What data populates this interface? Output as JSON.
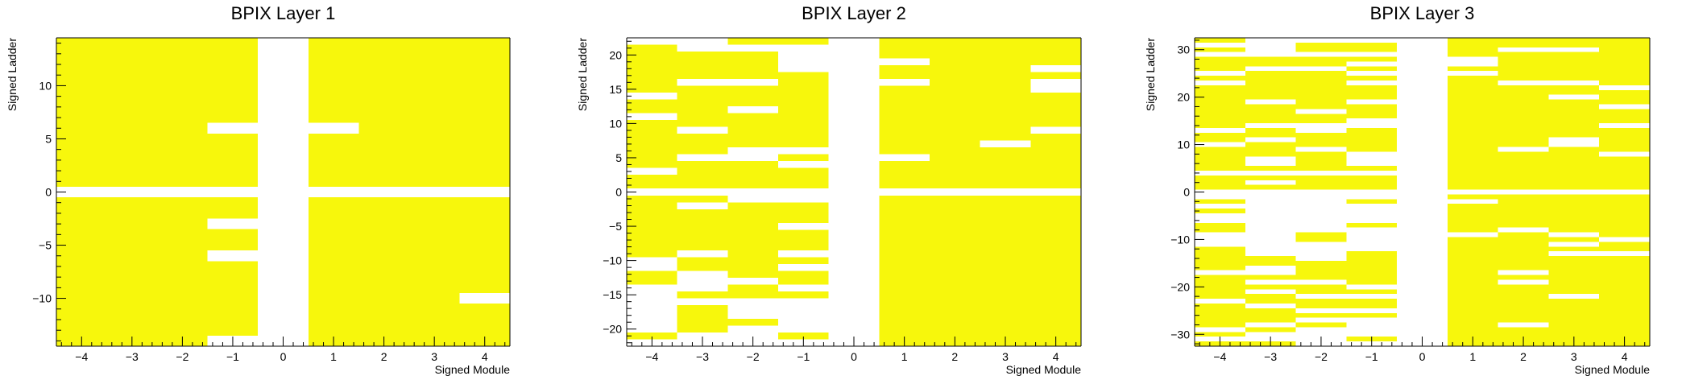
{
  "chart_data": [
    {
      "type": "heatmap",
      "title": "BPIX Layer 1",
      "xlabel": "Signed Module",
      "ylabel": "Signed Ladder",
      "xlim": [
        -4.5,
        4.5
      ],
      "ylim": [
        -14.5,
        14.5
      ],
      "xticks": [
        -4,
        -3,
        -2,
        -1,
        0,
        1,
        2,
        3,
        4
      ],
      "yticks": [
        -10,
        -5,
        0,
        5,
        10
      ],
      "fill_color": "#f7f70c",
      "empty_color": "#ffffff",
      "empty_cells_note": "listed cells (x=module, y=ladder) are empty; all other cells in range are filled",
      "empty_cells": [
        {
          "x": 0,
          "y_range": [
            -14,
            14
          ]
        },
        {
          "x": -1,
          "y": -14
        },
        {
          "x": -1,
          "y": 6
        },
        {
          "x": -1,
          "y": -3
        },
        {
          "x": -1,
          "y": -6
        },
        {
          "x": 1,
          "y": 6
        },
        {
          "x": 4,
          "y": -10
        },
        {
          "x_range": [
            -4,
            4
          ],
          "y": 0
        }
      ]
    },
    {
      "type": "heatmap",
      "title": "BPIX Layer 2",
      "xlabel": "Signed Module",
      "ylabel": "Signed Ladder",
      "xlim": [
        -4.5,
        4.5
      ],
      "ylim": [
        -22.5,
        22.5
      ],
      "xticks": [
        -4,
        -3,
        -2,
        -1,
        0,
        1,
        2,
        3,
        4
      ],
      "yticks": [
        -20,
        -15,
        -10,
        -5,
        0,
        5,
        10,
        15,
        20
      ],
      "fill_color": "#f7f70c",
      "empty_color": "#ffffff",
      "filled_cells_note": "per module: list of ladder values that are filled",
      "filled_by_module": {
        "-4": [
          -21,
          -13,
          -12,
          -9,
          -8,
          -7,
          -6,
          -5,
          -4,
          -3,
          -2,
          -1,
          1,
          2,
          4,
          5,
          6,
          7,
          8,
          9,
          10,
          12,
          13,
          15,
          16,
          17,
          18,
          19,
          20,
          21
        ],
        "-3": [
          -20,
          -19,
          -18,
          -17,
          -15,
          -11,
          -10,
          -8,
          -7,
          -6,
          -5,
          -4,
          -3,
          -1,
          1,
          2,
          3,
          4,
          6,
          7,
          8,
          10,
          11,
          12,
          13,
          14,
          15,
          17,
          18,
          19,
          20
        ],
        "-2": [
          -19,
          -15,
          -14,
          -12,
          -11,
          -10,
          -9,
          -8,
          -7,
          -6,
          -5,
          -4,
          -3,
          -2,
          1,
          2,
          3,
          4,
          7,
          8,
          9,
          10,
          11,
          13,
          14,
          15,
          17,
          18,
          19,
          20,
          22
        ],
        "-1": [
          -21,
          -15,
          -13,
          -12,
          -10,
          -8,
          -7,
          -6,
          -4,
          -3,
          -2,
          1,
          2,
          3,
          5,
          7,
          8,
          9,
          10,
          11,
          12,
          13,
          14,
          15,
          16,
          17,
          22
        ],
        "0": [],
        "1": [
          -22,
          -21,
          -20,
          -19,
          -18,
          -17,
          -16,
          -15,
          -14,
          -13,
          -12,
          -11,
          -10,
          -9,
          -8,
          -7,
          -6,
          -5,
          -4,
          -3,
          -2,
          -1,
          1,
          2,
          3,
          4,
          6,
          7,
          8,
          9,
          10,
          11,
          12,
          13,
          14,
          15,
          17,
          18,
          20,
          21,
          22
        ],
        "2": [
          -22,
          -21,
          -20,
          -19,
          -18,
          -17,
          -16,
          -15,
          -14,
          -13,
          -12,
          -11,
          -10,
          -9,
          -8,
          -7,
          -6,
          -5,
          -4,
          -3,
          -2,
          -1,
          1,
          2,
          3,
          4,
          5,
          6,
          7,
          8,
          9,
          10,
          11,
          12,
          13,
          14,
          15,
          16,
          17,
          18,
          19,
          20,
          21,
          22
        ],
        "3": [
          -22,
          -21,
          -20,
          -19,
          -18,
          -17,
          -16,
          -15,
          -14,
          -13,
          -12,
          -11,
          -10,
          -9,
          -8,
          -7,
          -6,
          -5,
          -4,
          -3,
          -2,
          -1,
          1,
          2,
          3,
          4,
          5,
          6,
          8,
          9,
          10,
          11,
          12,
          13,
          14,
          15,
          16,
          17,
          18,
          19,
          20,
          21,
          22
        ],
        "4": [
          -22,
          -21,
          -20,
          -19,
          -18,
          -17,
          -16,
          -15,
          -14,
          -13,
          -12,
          -11,
          -10,
          -9,
          -8,
          -7,
          -6,
          -5,
          -4,
          -3,
          -2,
          -1,
          1,
          2,
          3,
          4,
          5,
          6,
          7,
          8,
          10,
          11,
          12,
          13,
          14,
          17,
          19,
          20,
          21,
          22
        ]
      }
    },
    {
      "type": "heatmap",
      "title": "BPIX Layer 3",
      "xlabel": "Signed Module",
      "ylabel": "Signed Ladder",
      "xlim": [
        -4.5,
        4.5
      ],
      "ylim": [
        -32.5,
        32.5
      ],
      "xticks": [
        -4,
        -3,
        -2,
        -1,
        0,
        1,
        2,
        3,
        4
      ],
      "yticks": [
        -30,
        -20,
        -10,
        0,
        10,
        20,
        30
      ],
      "fill_color": "#f7f70c",
      "empty_color": "#ffffff",
      "filled_cells_note": "per module: list of ladder values that are filled",
      "filled_by_module": {
        "-4": [
          -32,
          -30,
          -28,
          -27,
          -26,
          -25,
          -24,
          -22,
          -21,
          -20,
          -19,
          -18,
          -16,
          -15,
          -14,
          -13,
          -12,
          -8,
          -7,
          -4,
          -2,
          1,
          2,
          3,
          5,
          6,
          7,
          8,
          9,
          11,
          12,
          14,
          15,
          16,
          17,
          18,
          19,
          20,
          21,
          22,
          24,
          26,
          27,
          28,
          30,
          32
        ],
        "-3": [
          -32,
          -29,
          -27,
          -26,
          -25,
          -23,
          -22,
          -20,
          -18,
          -15,
          -14,
          1,
          3,
          5,
          8,
          9,
          10,
          12,
          13,
          15,
          16,
          17,
          18,
          20,
          21,
          22,
          23,
          24,
          25,
          27,
          28
        ],
        "-2": [
          -28,
          -26,
          -24,
          -23,
          -21,
          -20,
          -18,
          -17,
          -16,
          -15,
          -10,
          -9,
          1,
          2,
          3,
          5,
          6,
          7,
          8,
          10,
          11,
          12,
          15,
          16,
          18,
          19,
          20,
          21,
          22,
          23,
          24,
          25,
          27,
          28,
          30,
          31
        ],
        "-1": [
          -31,
          -26,
          -24,
          -23,
          -21,
          -19,
          -18,
          -17,
          -16,
          -15,
          -14,
          -13,
          -7,
          -2,
          1,
          2,
          3,
          5,
          9,
          10,
          11,
          12,
          13,
          16,
          17,
          18,
          20,
          21,
          22,
          24,
          26,
          28,
          30,
          31
        ],
        "0": [],
        "1": [
          -32,
          -31,
          -30,
          -29,
          -28,
          -27,
          -26,
          -25,
          -24,
          -23,
          -22,
          -21,
          -20,
          -19,
          -18,
          -17,
          -16,
          -15,
          -14,
          -13,
          -12,
          -11,
          -10,
          -8,
          -7,
          -6,
          -5,
          -4,
          -3,
          -1,
          1,
          2,
          3,
          4,
          5,
          6,
          7,
          8,
          9,
          10,
          11,
          12,
          13,
          14,
          15,
          16,
          17,
          18,
          19,
          20,
          21,
          22,
          23,
          24,
          26,
          29,
          30,
          31,
          32
        ],
        "2": [
          -32,
          -31,
          -30,
          -29,
          -27,
          -26,
          -25,
          -24,
          -23,
          -22,
          -21,
          -20,
          -18,
          -16,
          -15,
          -14,
          -13,
          -12,
          -11,
          -10,
          -9,
          -7,
          -6,
          -5,
          -4,
          -3,
          -2,
          -1,
          1,
          2,
          3,
          4,
          5,
          6,
          7,
          8,
          10,
          11,
          12,
          13,
          14,
          15,
          16,
          17,
          18,
          19,
          20,
          21,
          22,
          24,
          25,
          26,
          27,
          28,
          29,
          31,
          32
        ],
        "3": [
          -32,
          -31,
          -30,
          -29,
          -28,
          -27,
          -26,
          -25,
          -24,
          -23,
          -21,
          -20,
          -19,
          -18,
          -17,
          -16,
          -15,
          -14,
          -12,
          -10,
          -8,
          -7,
          -6,
          -5,
          -4,
          -3,
          -2,
          -1,
          1,
          2,
          3,
          4,
          5,
          6,
          7,
          8,
          9,
          12,
          13,
          14,
          15,
          16,
          17,
          18,
          19,
          21,
          22,
          24,
          25,
          26,
          27,
          28,
          29,
          31,
          32
        ],
        "4": [
          -32,
          -31,
          -30,
          -29,
          -28,
          -27,
          -26,
          -25,
          -24,
          -23,
          -22,
          -21,
          -20,
          -19,
          -18,
          -17,
          -16,
          -15,
          -14,
          -12,
          -11,
          -9,
          -8,
          -7,
          -6,
          -5,
          -4,
          -3,
          -2,
          -1,
          1,
          2,
          3,
          4,
          5,
          6,
          7,
          9,
          10,
          11,
          12,
          13,
          15,
          16,
          17,
          19,
          20,
          21,
          23,
          24,
          25,
          26,
          27,
          28,
          29,
          30,
          31,
          32
        ]
      }
    }
  ]
}
